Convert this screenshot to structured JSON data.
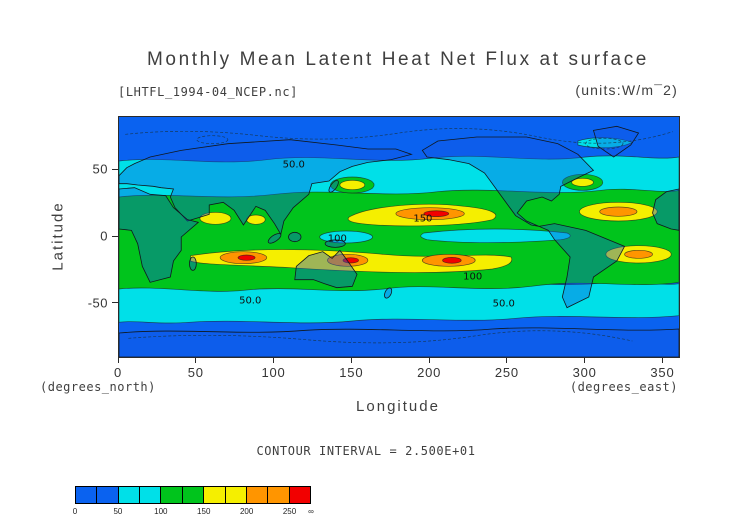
{
  "chart_data": {
    "type": "heatmap",
    "title": "Monthly Mean Latent Heat Net Flux at surface",
    "dataset_label": "[LHTFL_1994-04_NCEP.nc]",
    "units_label": "(units:W/m¯2)",
    "xlabel": "Longitude",
    "ylabel": "Latitude",
    "x_units_note": "(degrees_east)",
    "y_units_note": "(degrees_north)",
    "xlim": [
      0,
      360
    ],
    "ylim": [
      -90,
      90
    ],
    "x_ticks": [
      "0",
      "50",
      "100",
      "150",
      "200",
      "250",
      "300",
      "350"
    ],
    "y_ticks": [
      "50",
      "0",
      "-50"
    ],
    "grid": false,
    "contour_interval": 25,
    "contour_interval_note": "CONTOUR INTERVAL = 2.500E+01",
    "contour_labels": [
      {
        "text": "50.0",
        "lon": 113,
        "lat": 53
      },
      {
        "text": "100",
        "lon": 141,
        "lat": -2
      },
      {
        "text": "150",
        "lon": 196,
        "lat": 13
      },
      {
        "text": "100",
        "lon": 228,
        "lat": -31
      },
      {
        "text": "50.0",
        "lon": 85,
        "lat": -49
      },
      {
        "text": "50.0",
        "lon": 248,
        "lat": -51
      }
    ],
    "colorbar": {
      "labels": [
        "0",
        "50",
        "100",
        "150",
        "200",
        "250",
        "∞"
      ],
      "segments": [
        {
          "from": 0,
          "to": 50,
          "color": "#0a62f0",
          "level": "0-50"
        },
        {
          "from": 50,
          "to": 100,
          "color": "#00e0e8",
          "level": "50-100"
        },
        {
          "from": 100,
          "to": 150,
          "color": "#00c41c",
          "level": "100-150"
        },
        {
          "from": 150,
          "to": 200,
          "color": "#f5ef00",
          "level": "150-200"
        },
        {
          "from": 200,
          "to": 250,
          "color": "#ff9500",
          "level": "200-250"
        },
        {
          "from": 250,
          "to": 275,
          "color": "#f20000",
          "level": "250+"
        }
      ]
    },
    "pattern_summary": "Filled contour world map: flux below 50 W/m^2 poleward of ~55° and over high-latitude land (blue), 50-100 in mid-latitude bands and along the equator (cyan), 100-150 across the tropics/subtropics (green), with 150-250+ maxima (yellow/orange/red) in the subtropical trade-wind oceans of both hemispheres"
  }
}
